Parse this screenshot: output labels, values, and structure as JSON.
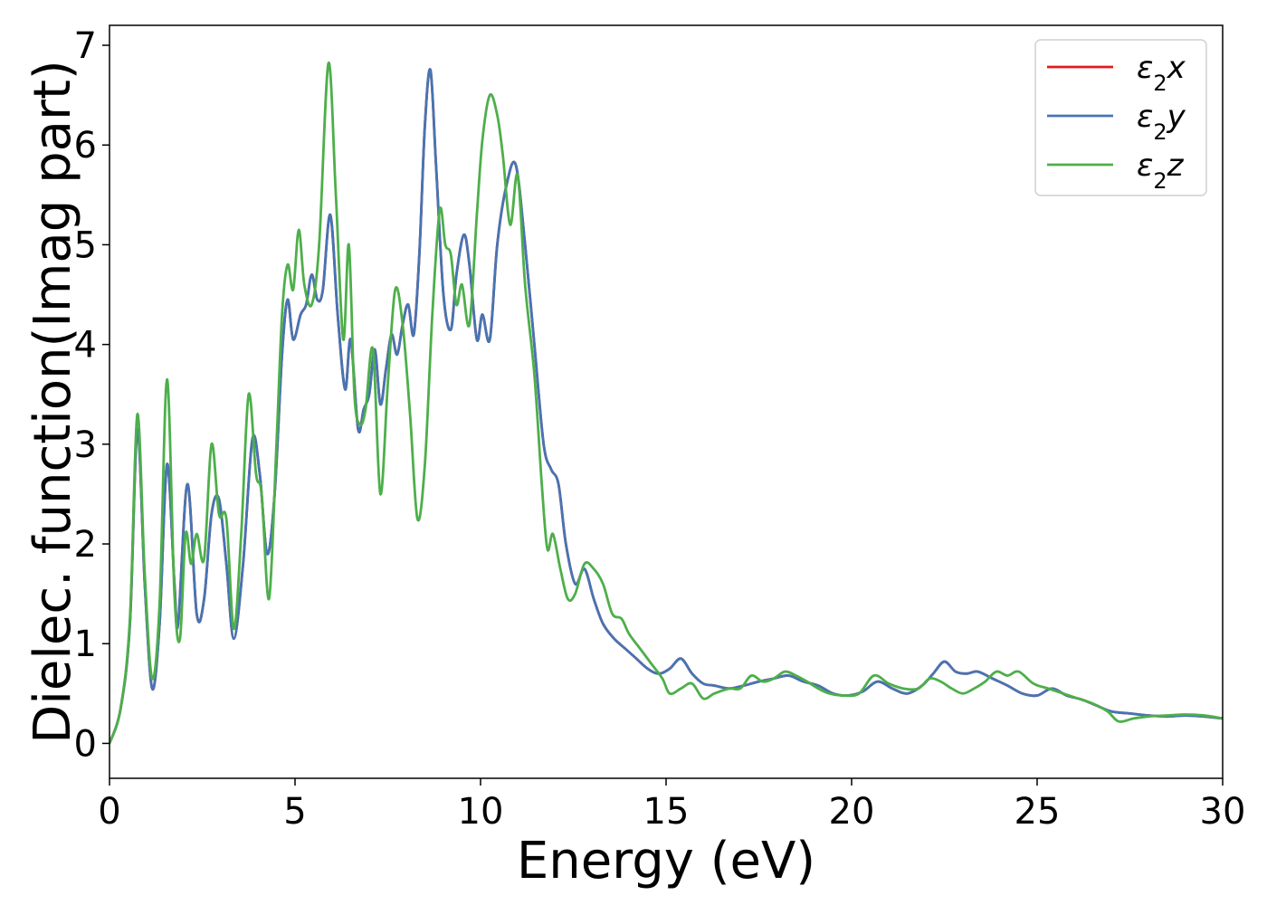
{
  "chart_data": {
    "type": "line",
    "title": "",
    "xlabel": "Energy (eV)",
    "ylabel": "Dielec. function(Imag part)",
    "xlim": [
      0,
      30
    ],
    "ylim": [
      -0.35,
      7.2
    ],
    "xticks": [
      0,
      5,
      10,
      15,
      20,
      25,
      30
    ],
    "yticks": [
      0,
      1,
      2,
      3,
      4,
      5,
      6,
      7
    ],
    "xtick_labels": [
      "0",
      "5",
      "10",
      "15",
      "20",
      "25",
      "30"
    ],
    "ytick_labels": [
      "0",
      "1",
      "2",
      "3",
      "4",
      "5",
      "6",
      "7"
    ],
    "grid": false,
    "legend_position": "top-right",
    "series": [
      {
        "name": "ε₂x",
        "label_base": "ε",
        "label_sub": "2",
        "label_axis": "x",
        "color": "#e41a1c",
        "x": [
          0,
          0.3,
          0.55,
          0.75,
          0.95,
          1.15,
          1.35,
          1.55,
          1.75,
          1.85,
          2.1,
          2.35,
          2.55,
          2.75,
          2.95,
          3.15,
          3.35,
          3.6,
          3.85,
          4.05,
          4.25,
          4.45,
          4.65,
          4.8,
          4.95,
          5.15,
          5.3,
          5.45,
          5.6,
          5.75,
          5.95,
          6.15,
          6.35,
          6.5,
          6.7,
          6.85,
          7.0,
          7.15,
          7.3,
          7.45,
          7.6,
          7.75,
          7.9,
          8.05,
          8.2,
          8.35,
          8.5,
          8.65,
          8.8,
          9.0,
          9.2,
          9.35,
          9.55,
          9.7,
          9.9,
          10.05,
          10.25,
          10.45,
          10.7,
          10.95,
          11.2,
          11.45,
          11.7,
          11.9,
          12.1,
          12.3,
          12.55,
          12.8,
          13.05,
          13.3,
          13.6,
          13.9,
          14.2,
          14.5,
          14.8,
          15.1,
          15.4,
          15.7,
          16.0,
          16.3,
          16.7,
          17.1,
          17.5,
          17.9,
          18.3,
          18.7,
          19.1,
          19.5,
          19.9,
          20.3,
          20.7,
          21.1,
          21.5,
          21.9,
          22.2,
          22.5,
          22.8,
          23.1,
          23.4,
          23.8,
          24.2,
          24.6,
          25.0,
          25.4,
          25.8,
          26.2,
          26.6,
          27.0,
          27.5,
          28.0,
          28.5,
          29.0,
          29.5,
          30.0
        ],
        "y": [
          0.0,
          0.35,
          1.2,
          3.15,
          1.6,
          0.55,
          1.2,
          2.8,
          1.6,
          1.2,
          2.6,
          1.3,
          1.45,
          2.3,
          2.45,
          1.8,
          1.05,
          1.8,
          3.05,
          2.7,
          1.9,
          2.5,
          3.9,
          4.45,
          4.05,
          4.3,
          4.4,
          4.7,
          4.45,
          4.55,
          5.3,
          4.3,
          3.55,
          4.05,
          3.15,
          3.35,
          3.5,
          3.95,
          3.4,
          3.75,
          4.1,
          3.9,
          4.2,
          4.4,
          4.1,
          4.9,
          6.2,
          6.75,
          5.8,
          4.5,
          4.15,
          4.7,
          5.1,
          4.8,
          4.05,
          4.3,
          4.05,
          5.0,
          5.6,
          5.8,
          5.0,
          4.0,
          3.0,
          2.75,
          2.6,
          2.0,
          1.6,
          1.75,
          1.45,
          1.2,
          1.05,
          0.95,
          0.85,
          0.75,
          0.7,
          0.75,
          0.85,
          0.7,
          0.6,
          0.58,
          0.55,
          0.58,
          0.62,
          0.65,
          0.68,
          0.62,
          0.58,
          0.5,
          0.48,
          0.52,
          0.62,
          0.55,
          0.5,
          0.58,
          0.7,
          0.82,
          0.72,
          0.7,
          0.72,
          0.65,
          0.58,
          0.5,
          0.48,
          0.55,
          0.48,
          0.44,
          0.38,
          0.32,
          0.3,
          0.28,
          0.27,
          0.28,
          0.27,
          0.25
        ]
      },
      {
        "name": "ε₂y",
        "label_base": "ε",
        "label_sub": "2",
        "label_axis": "y",
        "color": "#4575b4",
        "x": [
          0,
          0.3,
          0.55,
          0.75,
          0.95,
          1.15,
          1.35,
          1.55,
          1.75,
          1.85,
          2.1,
          2.35,
          2.55,
          2.75,
          2.95,
          3.15,
          3.35,
          3.6,
          3.85,
          4.05,
          4.25,
          4.45,
          4.65,
          4.8,
          4.95,
          5.15,
          5.3,
          5.45,
          5.6,
          5.75,
          5.95,
          6.15,
          6.35,
          6.5,
          6.7,
          6.85,
          7.0,
          7.15,
          7.3,
          7.45,
          7.6,
          7.75,
          7.9,
          8.05,
          8.2,
          8.35,
          8.5,
          8.65,
          8.8,
          9.0,
          9.2,
          9.35,
          9.55,
          9.7,
          9.9,
          10.05,
          10.25,
          10.45,
          10.7,
          10.95,
          11.2,
          11.45,
          11.7,
          11.9,
          12.1,
          12.3,
          12.55,
          12.8,
          13.05,
          13.3,
          13.6,
          13.9,
          14.2,
          14.5,
          14.8,
          15.1,
          15.4,
          15.7,
          16.0,
          16.3,
          16.7,
          17.1,
          17.5,
          17.9,
          18.3,
          18.7,
          19.1,
          19.5,
          19.9,
          20.3,
          20.7,
          21.1,
          21.5,
          21.9,
          22.2,
          22.5,
          22.8,
          23.1,
          23.4,
          23.8,
          24.2,
          24.6,
          25.0,
          25.4,
          25.8,
          26.2,
          26.6,
          27.0,
          27.5,
          28.0,
          28.5,
          29.0,
          29.5,
          30.0
        ],
        "y": [
          0.0,
          0.35,
          1.2,
          3.15,
          1.6,
          0.55,
          1.2,
          2.8,
          1.6,
          1.2,
          2.6,
          1.3,
          1.45,
          2.3,
          2.45,
          1.8,
          1.05,
          1.8,
          3.05,
          2.7,
          1.9,
          2.5,
          3.9,
          4.45,
          4.05,
          4.3,
          4.4,
          4.7,
          4.45,
          4.55,
          5.3,
          4.3,
          3.55,
          4.05,
          3.15,
          3.35,
          3.5,
          3.95,
          3.4,
          3.75,
          4.1,
          3.9,
          4.2,
          4.4,
          4.1,
          4.9,
          6.2,
          6.75,
          5.8,
          4.5,
          4.15,
          4.7,
          5.1,
          4.8,
          4.05,
          4.3,
          4.05,
          5.0,
          5.6,
          5.8,
          5.0,
          4.0,
          3.0,
          2.75,
          2.6,
          2.0,
          1.6,
          1.75,
          1.45,
          1.2,
          1.05,
          0.95,
          0.85,
          0.75,
          0.7,
          0.75,
          0.85,
          0.7,
          0.6,
          0.58,
          0.55,
          0.58,
          0.62,
          0.65,
          0.68,
          0.62,
          0.58,
          0.5,
          0.48,
          0.52,
          0.62,
          0.55,
          0.5,
          0.58,
          0.7,
          0.82,
          0.72,
          0.7,
          0.72,
          0.65,
          0.58,
          0.5,
          0.48,
          0.55,
          0.48,
          0.44,
          0.38,
          0.32,
          0.3,
          0.28,
          0.27,
          0.28,
          0.27,
          0.25
        ]
      },
      {
        "name": "ε₂z",
        "label_base": "ε",
        "label_sub": "2",
        "label_axis": "z",
        "color": "#4daf4a",
        "x": [
          0,
          0.3,
          0.55,
          0.75,
          0.95,
          1.15,
          1.35,
          1.55,
          1.75,
          1.9,
          2.05,
          2.2,
          2.35,
          2.55,
          2.75,
          2.95,
          3.15,
          3.35,
          3.55,
          3.75,
          3.95,
          4.1,
          4.3,
          4.5,
          4.65,
          4.8,
          4.95,
          5.1,
          5.25,
          5.45,
          5.65,
          5.9,
          6.1,
          6.3,
          6.45,
          6.6,
          6.75,
          6.9,
          7.1,
          7.3,
          7.5,
          7.7,
          7.9,
          8.1,
          8.3,
          8.5,
          8.7,
          8.9,
          9.05,
          9.2,
          9.35,
          9.5,
          9.7,
          9.9,
          10.05,
          10.25,
          10.45,
          10.6,
          10.8,
          11.0,
          11.2,
          11.45,
          11.65,
          11.8,
          11.95,
          12.15,
          12.35,
          12.55,
          12.8,
          13.05,
          13.3,
          13.55,
          13.8,
          14.0,
          14.3,
          14.6,
          14.9,
          15.1,
          15.4,
          15.7,
          16.0,
          16.3,
          16.7,
          17.0,
          17.3,
          17.6,
          17.9,
          18.2,
          18.5,
          18.8,
          19.1,
          19.4,
          19.8,
          20.2,
          20.6,
          21.0,
          21.4,
          21.8,
          22.1,
          22.4,
          22.7,
          23.0,
          23.3,
          23.6,
          23.9,
          24.2,
          24.5,
          24.9,
          25.3,
          25.7,
          26.1,
          26.5,
          26.9,
          27.2,
          27.6,
          28.0,
          28.5,
          29.0,
          29.5,
          30.0
        ],
        "y": [
          0.0,
          0.35,
          1.25,
          3.3,
          1.7,
          0.65,
          1.4,
          3.65,
          1.5,
          1.05,
          2.1,
          1.8,
          2.1,
          1.85,
          3.0,
          2.3,
          2.25,
          1.15,
          2.1,
          3.5,
          2.7,
          2.5,
          1.45,
          3.0,
          4.3,
          4.8,
          4.55,
          5.15,
          4.6,
          4.4,
          5.0,
          6.82,
          5.5,
          4.05,
          5.0,
          3.5,
          3.2,
          3.35,
          3.95,
          2.5,
          3.6,
          4.55,
          4.2,
          3.3,
          2.25,
          2.8,
          4.3,
          5.35,
          5.0,
          4.9,
          4.4,
          4.6,
          4.2,
          5.3,
          6.05,
          6.5,
          6.3,
          5.9,
          5.2,
          5.7,
          4.6,
          3.7,
          2.6,
          1.95,
          2.1,
          1.75,
          1.45,
          1.5,
          1.8,
          1.75,
          1.6,
          1.3,
          1.25,
          1.1,
          0.95,
          0.8,
          0.65,
          0.5,
          0.55,
          0.6,
          0.45,
          0.5,
          0.55,
          0.55,
          0.68,
          0.62,
          0.65,
          0.72,
          0.68,
          0.62,
          0.55,
          0.5,
          0.48,
          0.5,
          0.68,
          0.6,
          0.55,
          0.55,
          0.65,
          0.62,
          0.55,
          0.5,
          0.55,
          0.62,
          0.72,
          0.68,
          0.72,
          0.6,
          0.55,
          0.5,
          0.45,
          0.4,
          0.32,
          0.22,
          0.25,
          0.27,
          0.28,
          0.29,
          0.28,
          0.25
        ]
      }
    ]
  }
}
